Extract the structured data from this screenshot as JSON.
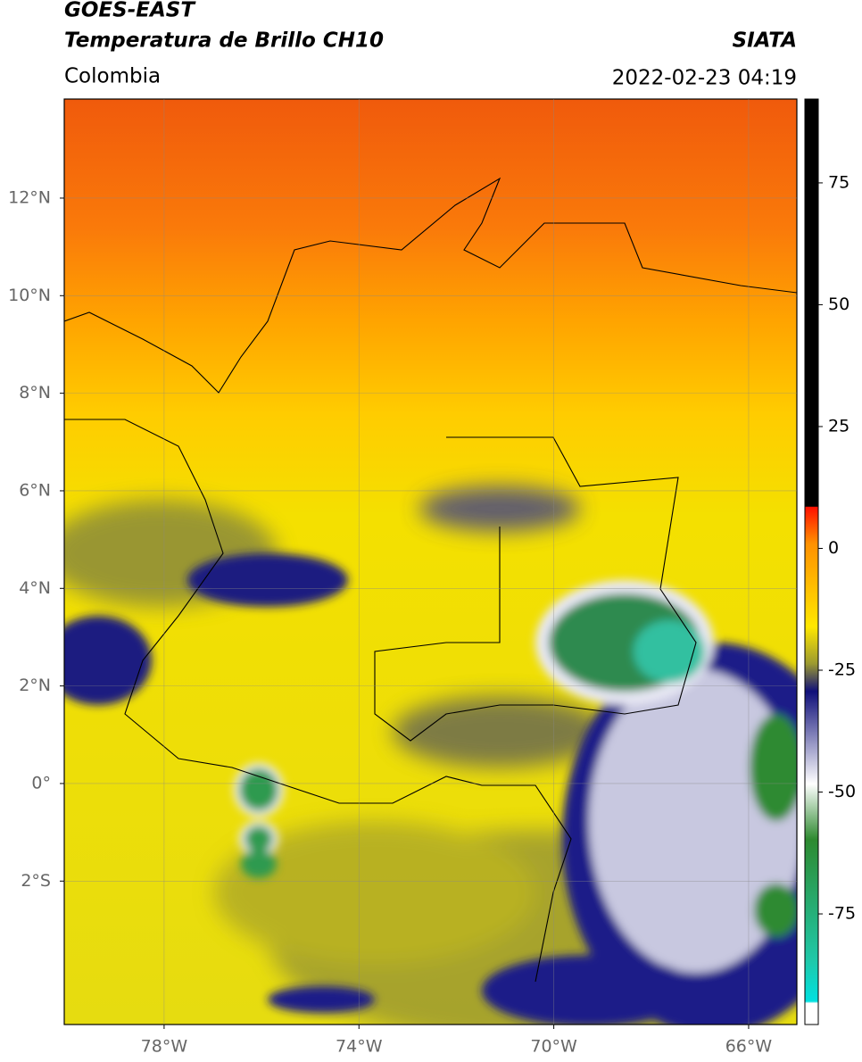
{
  "header": {
    "title": "GOES-EAST",
    "subtitle": "Temperatura de Brillo CH10",
    "region": "Colombia",
    "source": "SIATA",
    "datetime": "2022-02-23 04:19"
  },
  "map": {
    "lon_range": [
      -80.05,
      -65.01
    ],
    "lat_range": [
      -4.94,
      14.03
    ],
    "lon_ticks": [
      {
        "value": -78,
        "label": "78°W"
      },
      {
        "value": -74,
        "label": "74°W"
      },
      {
        "value": -70,
        "label": "70°W"
      },
      {
        "value": -66,
        "label": "66°W"
      }
    ],
    "lat_ticks": [
      {
        "value": 12,
        "label": "12°N"
      },
      {
        "value": 10,
        "label": "10°N"
      },
      {
        "value": 8,
        "label": "8°N"
      },
      {
        "value": 6,
        "label": "6°N"
      },
      {
        "value": 4,
        "label": "4°N"
      },
      {
        "value": 2,
        "label": "2°N"
      },
      {
        "value": 0,
        "label": "0°"
      },
      {
        "value": -2,
        "label": "2°S"
      }
    ]
  },
  "colorbar": {
    "range": [
      -97.7,
      92.2
    ],
    "ticks": [
      75,
      50,
      25,
      0,
      -25,
      -50,
      -75
    ]
  }
}
